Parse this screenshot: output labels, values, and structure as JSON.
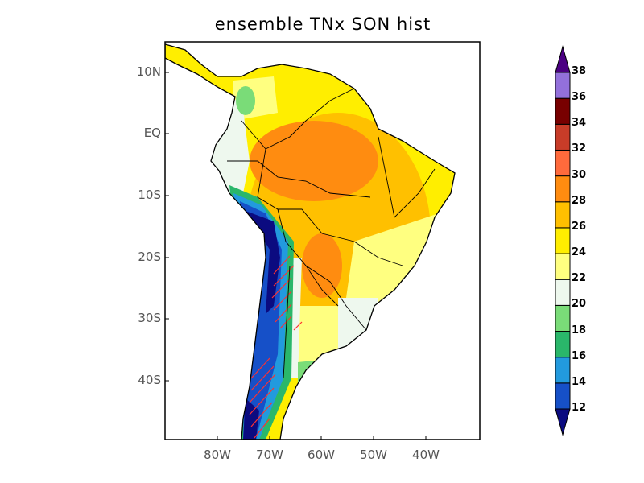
{
  "title": "ensemble TNx SON hist",
  "lat_labels": [
    "10N",
    "EQ",
    "10S",
    "20S",
    "30S",
    "40S"
  ],
  "lon_labels": [
    "80W",
    "70W",
    "60W",
    "50W",
    "40W"
  ],
  "colorbar": {
    "levels": [
      "12",
      "14",
      "16",
      "18",
      "20",
      "22",
      "24",
      "26",
      "28",
      "30",
      "32",
      "34",
      "36",
      "38"
    ],
    "colors": [
      "#0b0b80",
      "#1650c8",
      "#229ade",
      "#2ab76a",
      "#7adc78",
      "#eef8ee",
      "#ffff80",
      "#ffee00",
      "#ffc000",
      "#ff8c10",
      "#ff6a3c",
      "#c83c28",
      "#780000",
      "#9370db",
      "#4b0082"
    ]
  }
}
